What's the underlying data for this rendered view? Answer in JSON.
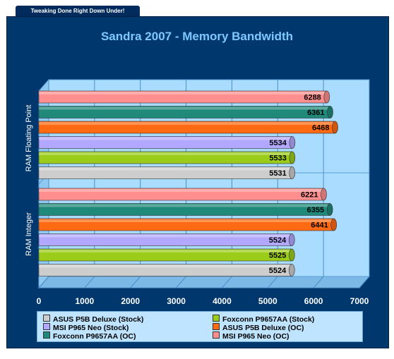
{
  "tab_label": "Tweaking Done Right Down Under!",
  "chart_data": {
    "type": "bar",
    "orientation": "horizontal",
    "title": "Sandra 2007 - Memory Bandwidth",
    "categories": [
      "RAM Floating Point",
      "RAM Integer"
    ],
    "xlim": [
      0,
      7000
    ],
    "xticks": [
      "0",
      "1000",
      "2000",
      "3000",
      "4000",
      "5000",
      "6000",
      "7000"
    ],
    "grid": true,
    "legend_position": "bottom",
    "series": [
      {
        "name": "MSI P965 Neo (OC)",
        "color": "#ff8f8f",
        "values": [
          6288,
          6221
        ]
      },
      {
        "name": "Foxconn P9657AA (OC)",
        "color": "#1f8a7a",
        "values": [
          6361,
          6355
        ]
      },
      {
        "name": "ASUS P5B Deluxe (OC)",
        "color": "#ff6a13",
        "values": [
          6468,
          6441
        ]
      },
      {
        "name": "MSI P965 Neo (Stock)",
        "color": "#b3a8ff",
        "values": [
          5534,
          5524
        ]
      },
      {
        "name": "Foxconn P9657AA (Stock)",
        "color": "#9ccc1a",
        "values": [
          5533,
          5525
        ]
      },
      {
        "name": "ASUS P5B Deluxe (Stock)",
        "color": "#cdcdcd",
        "values": [
          5531,
          5524
        ]
      }
    ]
  },
  "legend": [
    {
      "label": "ASUS P5B Deluxe (Stock)",
      "color": "#cdcdcd"
    },
    {
      "label": "Foxconn P9657AA (Stock)",
      "color": "#9ccc1a"
    },
    {
      "label": "MSI P965 Neo (Stock)",
      "color": "#b3a8ff"
    },
    {
      "label": "ASUS P5B Deluxe (OC)",
      "color": "#ff6a13"
    },
    {
      "label": "Foxconn P9657AA (OC)",
      "color": "#1f8a7a"
    },
    {
      "label": "MSI P965 Neo (OC)",
      "color": "#ff8f8f"
    }
  ]
}
